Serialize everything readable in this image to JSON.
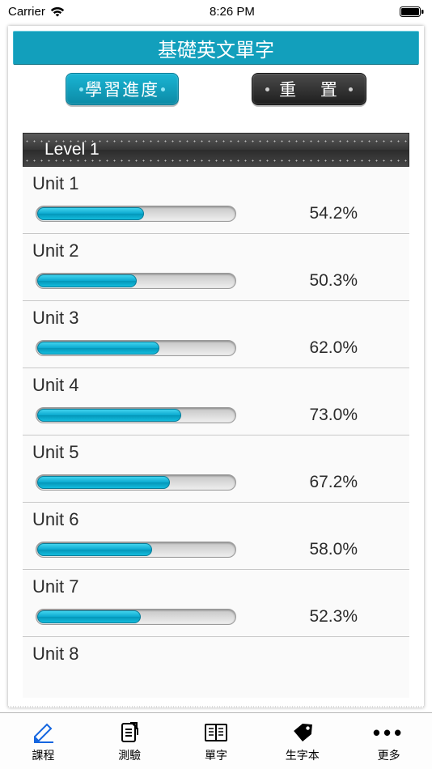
{
  "status": {
    "carrier": "Carrier",
    "time": "8:26 PM"
  },
  "title": "基礎英文單字",
  "buttons": {
    "progress": "學習進度",
    "reset": "重 置"
  },
  "level_label": "Level 1",
  "units": [
    {
      "name": "Unit 1",
      "pct": 54.2,
      "pct_label": "54.2%"
    },
    {
      "name": "Unit 2",
      "pct": 50.3,
      "pct_label": "50.3%"
    },
    {
      "name": "Unit 3",
      "pct": 62.0,
      "pct_label": "62.0%"
    },
    {
      "name": "Unit 4",
      "pct": 73.0,
      "pct_label": "73.0%"
    },
    {
      "name": "Unit 5",
      "pct": 67.2,
      "pct_label": "67.2%"
    },
    {
      "name": "Unit 6",
      "pct": 58.0,
      "pct_label": "58.0%"
    },
    {
      "name": "Unit 7",
      "pct": 52.3,
      "pct_label": "52.3%"
    },
    {
      "name": "Unit 8",
      "pct": null,
      "pct_label": ""
    }
  ],
  "tabs": [
    {
      "label": "課程",
      "icon": "pencil",
      "active": true
    },
    {
      "label": "測驗",
      "icon": "test",
      "active": false
    },
    {
      "label": "單字",
      "icon": "book",
      "active": false
    },
    {
      "label": "生字本",
      "icon": "tag",
      "active": false
    },
    {
      "label": "更多",
      "icon": "more",
      "active": false
    }
  ],
  "colors": {
    "brand_cyan": "#129fbc",
    "progress_fill": "#0aa9cf",
    "dark_button": "#2b2b2b",
    "active_tab": "#1566e0"
  }
}
